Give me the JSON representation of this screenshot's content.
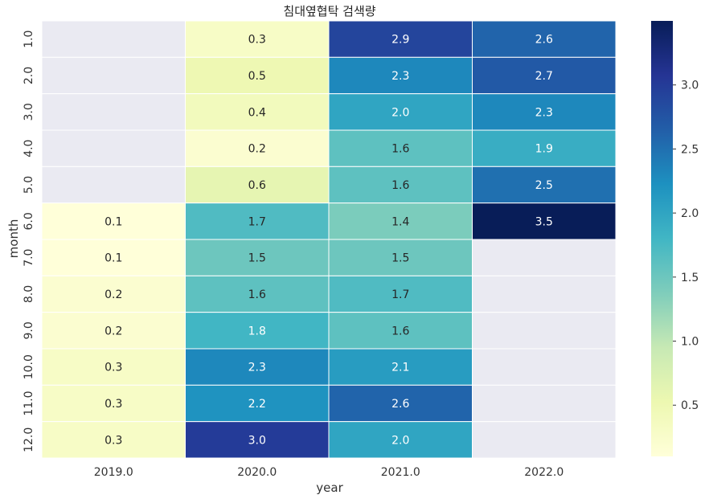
{
  "chart_data": {
    "type": "heatmap",
    "title": "침대옆협탁 검색량",
    "xlabel": "year",
    "ylabel": "month",
    "x_categories": [
      "2019.0",
      "2020.0",
      "2021.0",
      "2022.0"
    ],
    "y_categories": [
      "1.0",
      "2.0",
      "3.0",
      "4.0",
      "5.0",
      "6.0",
      "7.0",
      "8.0",
      "9.0",
      "10.0",
      "11.0",
      "12.0"
    ],
    "values": [
      [
        null,
        0.3,
        2.9,
        2.6
      ],
      [
        null,
        0.5,
        2.3,
        2.7
      ],
      [
        null,
        0.4,
        2.0,
        2.3
      ],
      [
        null,
        0.2,
        1.6,
        1.9
      ],
      [
        null,
        0.6,
        1.6,
        2.5
      ],
      [
        0.1,
        1.7,
        1.4,
        3.5
      ],
      [
        0.1,
        1.5,
        1.5,
        null
      ],
      [
        0.2,
        1.6,
        1.7,
        null
      ],
      [
        0.2,
        1.8,
        1.6,
        null
      ],
      [
        0.3,
        2.3,
        2.1,
        null
      ],
      [
        0.3,
        2.2,
        2.6,
        null
      ],
      [
        0.3,
        3.0,
        2.0,
        null
      ]
    ],
    "value_format": "0.0",
    "colormap": "YlGnBu",
    "color_range": [
      0.1,
      3.5
    ],
    "colorbar": {
      "ticks": [
        0.5,
        1.0,
        1.5,
        2.0,
        2.5,
        3.0
      ],
      "tick_labels": [
        "0.5",
        "1.0",
        "1.5",
        "2.0",
        "2.5",
        "3.0"
      ]
    },
    "missing_color": "#eaeaf2",
    "grid_line_color": "#ffffff",
    "legend_position": "right"
  }
}
